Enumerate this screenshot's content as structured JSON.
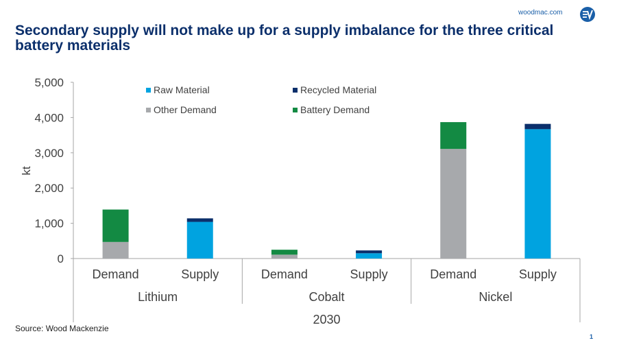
{
  "header": {
    "brand": "woodmac.com",
    "title": "Secondary supply will not make up for a supply imbalance for the three critical battery materials"
  },
  "footer": {
    "source": "Source: Wood Mackenzie",
    "page_number": "1"
  },
  "colors": {
    "raw_material": "#00a3e0",
    "recycled_material": "#0b2f6b",
    "other_demand": "#a7a9ac",
    "battery_demand": "#138a43",
    "title": "#0b2f6b",
    "brand": "#1a5fa8"
  },
  "chart_data": {
    "type": "bar",
    "stacked": true,
    "ylabel": "kt",
    "ylim": [
      0,
      5000
    ],
    "yticks": [
      0,
      1000,
      2000,
      3000,
      4000,
      5000
    ],
    "ytick_labels": [
      "0",
      "1,000",
      "2,000",
      "3,000",
      "4,000",
      "5,000"
    ],
    "year_label": "2030",
    "groups": [
      "Lithium",
      "Cobalt",
      "Nickel"
    ],
    "categories": [
      "Demand",
      "Supply",
      "Demand",
      "Supply",
      "Demand",
      "Supply"
    ],
    "series": [
      {
        "name": "Other Demand",
        "color_key": "other_demand",
        "values": [
          470,
          0,
          110,
          0,
          3110,
          0
        ]
      },
      {
        "name": "Battery Demand",
        "color_key": "battery_demand",
        "values": [
          920,
          0,
          140,
          0,
          760,
          0
        ]
      },
      {
        "name": "Raw Material",
        "color_key": "raw_material",
        "values": [
          0,
          1040,
          0,
          150,
          0,
          3670
        ]
      },
      {
        "name": "Recycled Material",
        "color_key": "recycled_material",
        "values": [
          0,
          100,
          0,
          80,
          0,
          150
        ]
      }
    ],
    "legend": {
      "placement": "top-left",
      "items": [
        {
          "name": "Raw Material",
          "color_key": "raw_material"
        },
        {
          "name": "Recycled Material",
          "color_key": "recycled_material"
        },
        {
          "name": "Other Demand",
          "color_key": "other_demand"
        },
        {
          "name": "Battery Demand",
          "color_key": "battery_demand"
        }
      ]
    }
  }
}
